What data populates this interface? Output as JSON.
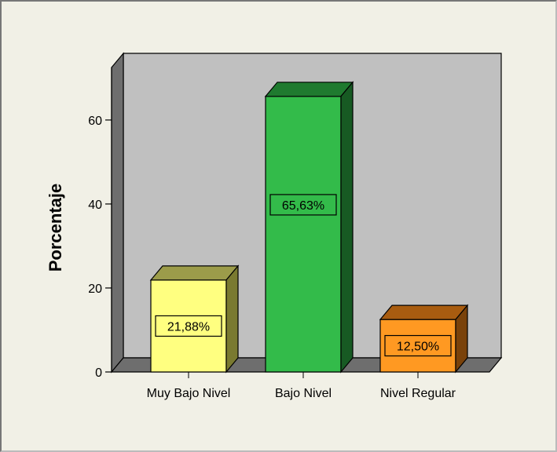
{
  "chart_data": {
    "type": "bar",
    "ylabel": "Porcentaje",
    "xlabel": "",
    "categories": [
      "Muy Bajo Nivel",
      "Bajo Nivel",
      "Nivel Regular"
    ],
    "values": [
      21.88,
      65.63,
      12.5
    ],
    "value_labels": [
      "21,88%",
      "65,63%",
      "12,50%"
    ],
    "yticks": [
      "0",
      "20",
      "40",
      "60"
    ],
    "ytick_values": [
      0,
      20,
      40,
      60
    ],
    "ylim": [
      0,
      74
    ],
    "grid": false,
    "colors": {
      "bars": [
        {
          "front": "#ffff80",
          "top": "#9c9c4a",
          "side": "#7a7a30"
        },
        {
          "front": "#33bb4a",
          "top": "#1f7a2f",
          "side": "#175a23"
        },
        {
          "front": "#ff9922",
          "top": "#a85c10",
          "side": "#7a420a"
        }
      ],
      "back_wall": "#c0c0c0",
      "side_wall": "#6e6e6e",
      "floor": "#6e6e6e",
      "frame_bg": "#f1f0e6"
    }
  }
}
